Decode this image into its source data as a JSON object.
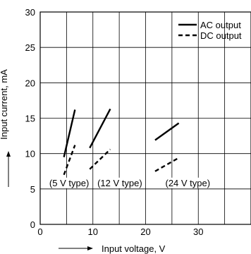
{
  "chart_data": {
    "type": "line",
    "xlabel": "Input voltage, V",
    "ylabel": "Input current, mA",
    "xlim": [
      0,
      40
    ],
    "ylim": [
      0,
      30
    ],
    "x_ticks": [
      0,
      10,
      20,
      30
    ],
    "y_ticks": [
      0,
      5,
      10,
      15,
      20,
      25,
      30
    ],
    "grid": true,
    "legend": "top-right",
    "legend_entries": [
      {
        "label": "AC output",
        "style": "solid"
      },
      {
        "label": "DC output",
        "style": "dashed"
      }
    ],
    "series": [
      {
        "name": "AC output",
        "group": "5 V type",
        "style": "solid",
        "x": [
          4.5,
          6.6
        ],
        "y": [
          9.5,
          16.2
        ]
      },
      {
        "name": "AC output",
        "group": "12 V type",
        "style": "solid",
        "x": [
          9.4,
          13.3
        ],
        "y": [
          10.8,
          16.3
        ]
      },
      {
        "name": "AC output",
        "group": "24 V type",
        "style": "solid",
        "x": [
          21.8,
          26.3
        ],
        "y": [
          11.9,
          14.3
        ]
      },
      {
        "name": "DC output",
        "group": "5 V type",
        "style": "dashed",
        "x": [
          4.5,
          6.6
        ],
        "y": [
          7.0,
          11.2
        ]
      },
      {
        "name": "DC output",
        "group": "12 V type",
        "style": "dashed",
        "x": [
          9.4,
          13.3
        ],
        "y": [
          7.8,
          10.6
        ]
      },
      {
        "name": "DC output",
        "group": "24 V type",
        "style": "dashed",
        "x": [
          21.8,
          26.3
        ],
        "y": [
          7.5,
          9.4
        ]
      }
    ],
    "annotations": [
      {
        "text": "(5 V type)",
        "x": 5.5,
        "y": 5.9
      },
      {
        "text": "(12 V type)",
        "x": 15.1,
        "y": 5.9
      },
      {
        "text": "(24 V type)",
        "x": 28.0,
        "y": 5.9
      }
    ]
  }
}
